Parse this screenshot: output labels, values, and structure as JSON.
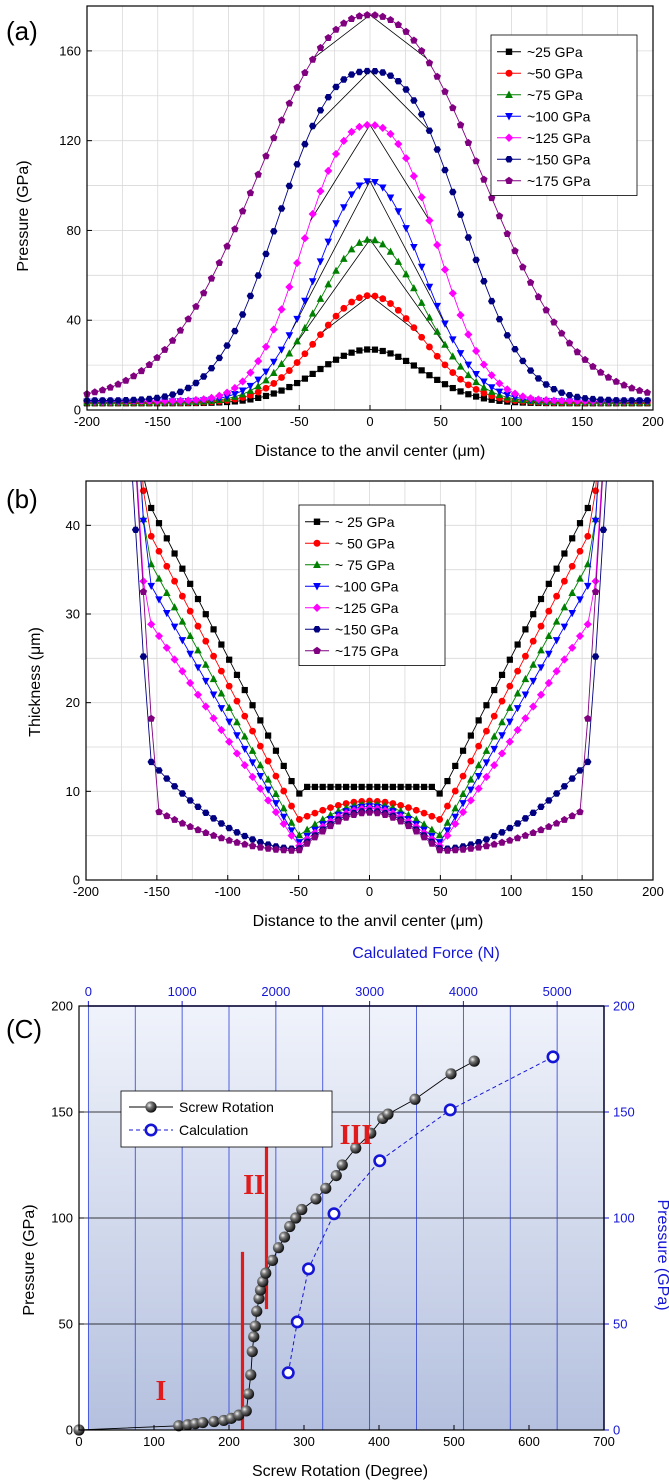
{
  "chart_data": [
    {
      "type": "line",
      "panel_label": "(a)",
      "xlabel": "Distance to the anvil center (μm)",
      "ylabel": "Pressure (GPa)",
      "xlim": [
        -200,
        200
      ],
      "ylim": [
        0,
        180
      ],
      "xticks": [
        -200,
        -150,
        -100,
        -50,
        0,
        50,
        100,
        150,
        200
      ],
      "yticks": [
        0,
        40,
        80,
        120,
        160
      ],
      "grid": true,
      "legend_position": "top-right",
      "series": [
        {
          "name": "~25 GPa",
          "marker": "square",
          "color": "#000000",
          "peak": 27
        },
        {
          "name": "~50 GPa",
          "marker": "circle",
          "color": "#ff0000",
          "peak": 51
        },
        {
          "name": "~75 GPa",
          "marker": "triangle-up",
          "color": "#008000",
          "peak": 76
        },
        {
          "name": "~100 GPa",
          "marker": "triangle-down",
          "color": "#0000ff",
          "peak": 102
        },
        {
          "name": "~125 GPa",
          "marker": "diamond",
          "color": "#ff00ff",
          "peak": 127
        },
        {
          "name": "~150 GPa",
          "marker": "hexagon",
          "color": "#000080",
          "peak": 151
        },
        {
          "name": "~175 GPa",
          "marker": "pentagon",
          "color": "#800080",
          "peak": 176
        }
      ]
    },
    {
      "type": "line",
      "panel_label": "(b)",
      "xlabel": "Distance to the anvil center (μm)",
      "ylabel": "Thickness (μm)",
      "xlim": [
        -200,
        200
      ],
      "ylim": [
        0,
        45
      ],
      "xticks": [
        -200,
        -150,
        -100,
        -50,
        0,
        50,
        100,
        150,
        200
      ],
      "yticks": [
        0,
        10,
        20,
        30,
        40
      ],
      "grid": true,
      "legend_position": "top-center",
      "series": [
        {
          "name": "~ 25 GPa",
          "marker": "square",
          "color": "#000000",
          "center": 10.5,
          "edge_min": 9.6,
          "outer": 43.2
        },
        {
          "name": "~ 50 GPa",
          "marker": "circle",
          "color": "#ff0000",
          "center": 8.9,
          "edge_min": 6.8,
          "outer": 40.0
        },
        {
          "name": "~ 75 GPa",
          "marker": "triangle-up",
          "color": "#008000",
          "center": 8.6,
          "edge_min": 5.0,
          "outer": 36.8
        },
        {
          "name": "~100 GPa",
          "marker": "triangle-down",
          "color": "#0000ff",
          "center": 8.3,
          "edge_min": 4.2,
          "outer": 34.0
        },
        {
          "name": "~125 GPa",
          "marker": "diamond",
          "color": "#ff00ff",
          "center": 8.1,
          "edge_min": 3.8,
          "outer": 29.8
        },
        {
          "name": "~150 GPa",
          "marker": "hexagon",
          "color": "#000080",
          "center": 7.8,
          "edge_min": 3.5,
          "outer": 13.5
        },
        {
          "name": "~175 GPa",
          "marker": "pentagon",
          "color": "#800080",
          "center": 7.6,
          "edge_min": 3.3,
          "outer": 7.8
        }
      ]
    },
    {
      "type": "scatter",
      "panel_label": "(C)",
      "xlabel": "Screw Rotation (Degree)",
      "ylabel": "Pressure (GPa)",
      "x2label": "Calculated Force (N)",
      "y2label": "Pressure (GPa)",
      "xlim": [
        0,
        700
      ],
      "ylim": [
        0,
        200
      ],
      "x2lim": [
        -100,
        5500
      ],
      "xticks": [
        0,
        100,
        200,
        300,
        400,
        500,
        600,
        700
      ],
      "yticks": [
        0,
        50,
        100,
        150,
        200
      ],
      "x2ticks": [
        0,
        1000,
        2000,
        3000,
        4000,
        5000
      ],
      "legend_position": "top-left",
      "regions": [
        "I",
        "II",
        "III"
      ],
      "series": [
        {
          "name": "Screw Rotation",
          "marker": "sphere",
          "color": "#000000",
          "x": [
            0,
            133,
            145,
            155,
            165,
            180,
            193,
            203,
            213,
            223,
            226,
            229,
            231,
            233,
            235,
            237,
            240,
            242,
            245,
            249,
            258,
            266,
            274,
            281,
            289,
            297,
            316,
            329,
            343,
            351,
            369,
            389,
            405,
            412,
            448,
            496,
            527
          ],
          "y": [
            0,
            2,
            2.5,
            3,
            3.5,
            4,
            4.5,
            5.5,
            7,
            9,
            17,
            26,
            37,
            44,
            49,
            56,
            62,
            66,
            70,
            74,
            80,
            86,
            91,
            96,
            100,
            104,
            109,
            114,
            120,
            125,
            133,
            140,
            147,
            149,
            156,
            168,
            174
          ]
        },
        {
          "name": "Calculation",
          "marker": "open-circle",
          "color": "#0000ff",
          "x": [
            279,
            291,
            306,
            340,
            401,
            495,
            632
          ],
          "y": [
            27,
            51,
            76,
            102,
            127,
            151,
            176
          ]
        }
      ]
    }
  ]
}
